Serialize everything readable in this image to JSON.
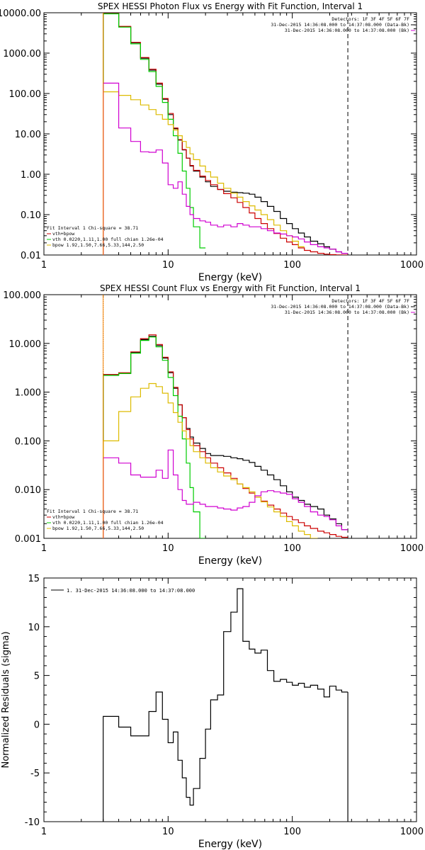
{
  "colors": {
    "data": "#000000",
    "total": "#cc0000",
    "vth": "#00cc00",
    "bpow": "#ddbb00",
    "residual_bg": "#d000d0",
    "energy_line": "#ff8800"
  },
  "chart_data": [
    {
      "type": "line",
      "title": "SPEX HESSI Photon Flux vs Energy with Fit Function, Interval 1",
      "xlabel": "Energy (keV)",
      "ylabel": "",
      "xscale": "log",
      "yscale": "log",
      "xlim": [
        1,
        1000
      ],
      "ylim": [
        0.01,
        10000
      ],
      "xticks": [
        "1",
        "10",
        "100",
        "1000"
      ],
      "yticks": [
        "10000.00",
        "1000.00",
        "100.00",
        "10.00",
        "1.00",
        "0.10",
        "0.01"
      ],
      "legend_top": [
        "Detectors: 1F 3F 4F 5F 6F 7F",
        "31-Dec-2015 14:36:08.000 to 14:37:08.000 (Data-Bk)",
        "31-Dec-2015 14:36:08.000 to 14:37:08.000 (Bk)"
      ],
      "legend_bottom": [
        "Fit Interval 1   Chi-square = 38.71",
        "vth+bpow",
        "vth 0.0220,1.11,1.00  full chian 1.26e-04",
        "bpow 1.92,1.50,7.66,5.33,144,2.50"
      ],
      "bin_edges": [
        3,
        4,
        5,
        6,
        7,
        8,
        9,
        10,
        11,
        12,
        13,
        14,
        15,
        16,
        18,
        20,
        22,
        25,
        28,
        32,
        36,
        40,
        45,
        50,
        56,
        63,
        71,
        80,
        90,
        100,
        112,
        125,
        140,
        160,
        180,
        200,
        225,
        250,
        280
      ],
      "series": [
        {
          "name": "Data-Bk",
          "color": "#000000",
          "values": [
            9500,
            4500,
            1800,
            750,
            380,
            170,
            72,
            30,
            13.5,
            7,
            4,
            2.5,
            1.6,
            1.2,
            0.85,
            0.65,
            0.5,
            0.42,
            0.38,
            0.36,
            0.35,
            0.34,
            0.32,
            0.27,
            0.21,
            0.16,
            0.12,
            0.08,
            0.06,
            0.045,
            0.035,
            0.028,
            0.022,
            0.019,
            0.016,
            0.014,
            0.012,
            0.011
          ]
        },
        {
          "name": "vth+bpow",
          "color": "#cc0000",
          "values": [
            9600,
            4600,
            1850,
            780,
            400,
            180,
            75,
            32,
            14,
            7.2,
            4.1,
            2.5,
            1.65,
            1.25,
            0.9,
            0.7,
            0.55,
            0.42,
            0.33,
            0.26,
            0.2,
            0.15,
            0.11,
            0.08,
            0.06,
            0.045,
            0.034,
            0.026,
            0.021,
            0.018,
            0.015,
            0.013,
            0.012,
            0.011,
            0.0105,
            0.0102,
            0.0101,
            0.01
          ]
        },
        {
          "name": "vth",
          "color": "#00cc00",
          "values": [
            9400,
            4400,
            1700,
            700,
            350,
            150,
            60,
            23,
            9,
            3.3,
            1.2,
            0.45,
            0.15,
            0.05,
            0.015
          ]
        },
        {
          "name": "bpow",
          "color": "#ddbb00",
          "values": [
            110,
            90,
            70,
            52,
            40,
            30,
            23,
            17,
            12.5,
            9,
            6.5,
            4.6,
            3.2,
            2.3,
            1.6,
            1.15,
            0.85,
            0.6,
            0.45,
            0.34,
            0.27,
            0.21,
            0.165,
            0.13,
            0.1,
            0.075,
            0.055,
            0.04,
            0.03,
            0.022,
            0.016
          ]
        },
        {
          "name": "Bk",
          "color": "#d000d0",
          "values": [
            180,
            14,
            6.5,
            3.6,
            3.5,
            4,
            1.9,
            0.55,
            0.45,
            0.65,
            0.32,
            0.16,
            0.1,
            0.08,
            0.07,
            0.065,
            0.055,
            0.05,
            0.055,
            0.05,
            0.06,
            0.055,
            0.05,
            0.05,
            0.045,
            0.04,
            0.035,
            0.033,
            0.03,
            0.028,
            0.025,
            0.021,
            0.018,
            0.016,
            0.015,
            0.014,
            0.012,
            0.011
          ]
        }
      ],
      "energy_marker_keV": 3,
      "upper_limit_keV": 280
    },
    {
      "type": "line",
      "title": "SPEX HESSI Count Flux vs Energy with Fit Function, Interval 1",
      "xlabel": "Energy (keV)",
      "ylabel": "",
      "xscale": "log",
      "yscale": "log",
      "xlim": [
        1,
        1000
      ],
      "ylim": [
        0.001,
        100
      ],
      "xticks": [
        "1",
        "10",
        "100",
        "1000"
      ],
      "yticks": [
        "100.000",
        "10.000",
        "1.000",
        "0.100",
        "0.010",
        "0.001"
      ],
      "legend_top": [
        "Detectors: 1F 3F 4F 5F 6F 7F",
        "31-Dec-2015 14:36:08.000 to 14:37:08.000 (Data-Bk)",
        "31-Dec-2015 14:36:08.000 to 14:37:08.000 (Bk)"
      ],
      "legend_bottom": [
        "Fit Interval 1   Chi-square = 38.71",
        "vth+bpow",
        "vth 0.0220,1.11,1.00  full chian 1.26e-04",
        "bpow 1.92,1.50,7.66,5.33,144,2.50"
      ],
      "bin_edges": [
        3,
        4,
        5,
        6,
        7,
        8,
        9,
        10,
        11,
        12,
        13,
        14,
        15,
        16,
        18,
        20,
        22,
        25,
        28,
        32,
        36,
        40,
        45,
        50,
        56,
        63,
        71,
        80,
        90,
        100,
        112,
        125,
        140,
        160,
        180,
        200,
        225,
        250,
        280
      ],
      "series": [
        {
          "name": "Data-Bk",
          "color": "#000000",
          "values": [
            2.3,
            2.4,
            6.5,
            12,
            14,
            9,
            5,
            2.5,
            1.2,
            0.55,
            0.3,
            0.18,
            0.12,
            0.09,
            0.07,
            0.055,
            0.05,
            0.05,
            0.048,
            0.045,
            0.043,
            0.04,
            0.036,
            0.03,
            0.025,
            0.02,
            0.016,
            0.012,
            0.009,
            0.007,
            0.006,
            0.005,
            0.0045,
            0.004,
            0.003,
            0.0025,
            0.002,
            0.0015
          ]
        },
        {
          "name": "vth+bpow",
          "color": "#cc0000",
          "values": [
            2.3,
            2.5,
            6.7,
            12.5,
            15,
            9.5,
            5.2,
            2.6,
            1.25,
            0.55,
            0.3,
            0.17,
            0.11,
            0.08,
            0.06,
            0.045,
            0.035,
            0.028,
            0.022,
            0.017,
            0.013,
            0.0105,
            0.0085,
            0.007,
            0.0058,
            0.0048,
            0.004,
            0.0033,
            0.0028,
            0.0024,
            0.0021,
            0.0018,
            0.0016,
            0.0014,
            0.0013,
            0.0012,
            0.0011,
            0.00105
          ]
        },
        {
          "name": "vth",
          "color": "#00cc00",
          "values": [
            2.2,
            2.4,
            6.3,
            11.5,
            13.5,
            8.5,
            4.5,
            2,
            0.85,
            0.32,
            0.11,
            0.035,
            0.011,
            0.0035,
            0.001
          ]
        },
        {
          "name": "bpow",
          "color": "#ddbb00",
          "values": [
            0.1,
            0.4,
            0.8,
            1.2,
            1.5,
            1.3,
            0.95,
            0.6,
            0.38,
            0.24,
            0.16,
            0.11,
            0.08,
            0.06,
            0.045,
            0.035,
            0.028,
            0.023,
            0.019,
            0.016,
            0.013,
            0.011,
            0.009,
            0.007,
            0.0056,
            0.0044,
            0.0035,
            0.0028,
            0.0022,
            0.0018,
            0.0014,
            0.0012,
            0.001
          ]
        },
        {
          "name": "Bk",
          "color": "#d000d0",
          "values": [
            0.045,
            0.035,
            0.02,
            0.018,
            0.018,
            0.025,
            0.017,
            0.065,
            0.02,
            0.01,
            0.006,
            0.005,
            0.005,
            0.0055,
            0.005,
            0.0045,
            0.0045,
            0.0042,
            0.004,
            0.0038,
            0.0042,
            0.0045,
            0.0055,
            0.0075,
            0.009,
            0.0095,
            0.009,
            0.0085,
            0.008,
            0.0065,
            0.0055,
            0.0045,
            0.0035,
            0.003,
            0.0028,
            0.0024,
            0.0018,
            0.0015
          ]
        }
      ],
      "energy_marker_keV": 3,
      "upper_limit_keV": 280
    },
    {
      "type": "line",
      "title": "",
      "xlabel": "Energy (keV)",
      "ylabel": "Normalized Residuals (sigma)",
      "xscale": "log",
      "yscale": "linear",
      "xlim": [
        1,
        1000
      ],
      "ylim": [
        -10,
        15
      ],
      "xticks": [
        "1",
        "10",
        "100",
        "1000"
      ],
      "yticks": [
        "15",
        "10",
        "5",
        "0",
        "-5",
        "-10"
      ],
      "legend": [
        "1. 31-Dec-2015 14:36:08.000 to 14:37:08.000"
      ],
      "bin_edges": [
        3,
        4,
        5,
        6,
        7,
        8,
        9,
        10,
        11,
        12,
        13,
        14,
        15,
        16,
        18,
        20,
        22,
        25,
        28,
        32,
        36,
        40,
        45,
        50,
        56,
        63,
        71,
        80,
        90,
        100,
        112,
        125,
        140,
        160,
        180,
        200,
        225,
        250,
        280
      ],
      "series": [
        {
          "name": "1. 31-Dec-2015 14:36:08.000 to 14:37:08.000",
          "color": "#000000",
          "values": [
            0.8,
            -0.3,
            -1.2,
            -1.2,
            1.3,
            3.3,
            0.5,
            -1.9,
            -0.8,
            -3.7,
            -5.5,
            -7.5,
            -8.3,
            -6.6,
            -3.5,
            -0.5,
            2.5,
            3.0,
            9.5,
            11.5,
            13.9,
            8.5,
            7.7,
            7.3,
            7.6,
            5.5,
            4.4,
            4.6,
            4.3,
            4.0,
            4.2,
            3.8,
            4.0,
            3.6,
            2.8,
            3.9,
            3.5,
            3.3
          ]
        }
      ],
      "reference_line": 0
    }
  ]
}
